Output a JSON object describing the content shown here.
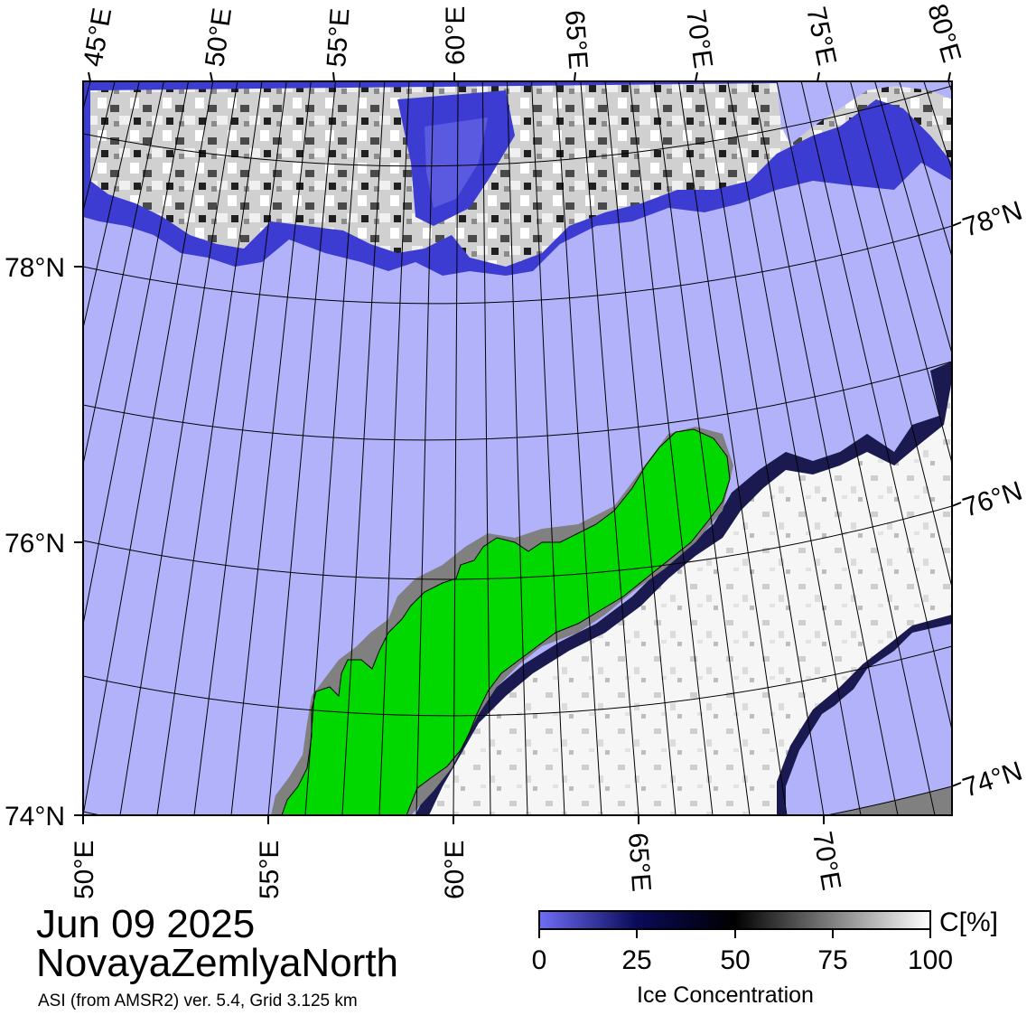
{
  "map": {
    "date": "Jun 09 2025",
    "region": "NovayaZemlyaNorth",
    "source": "ASI (from AMSR2) ver. 5.4,  Grid 3.125 km",
    "top_lon_labels": [
      "45°E",
      "50°E",
      "55°E",
      "60°E",
      "65°E",
      "70°E",
      "75°E",
      "80°E"
    ],
    "bottom_lon_labels": [
      "50°E",
      "55°E",
      "60°E",
      "65°E",
      "70°E"
    ],
    "left_lat_labels": [
      "78°N",
      "76°N",
      "74°N"
    ],
    "right_lat_labels": [
      "78°N",
      "76°N",
      "74°N"
    ]
  },
  "colorbar": {
    "unit": "C[%]",
    "title": "Ice Concentration",
    "ticks": [
      "0",
      "25",
      "50",
      "75",
      "100"
    ],
    "stops": [
      "#6e6ef5",
      "#0a0a5a",
      "#000000",
      "#808080",
      "#ffffff"
    ]
  },
  "colors": {
    "open_water": "#b2b2fa",
    "ice_edge": "#3c3cd2",
    "ice_dark": "#14143c",
    "ice": "#f4f4f4",
    "land": "#00d800",
    "land_shadow": "#808080"
  }
}
